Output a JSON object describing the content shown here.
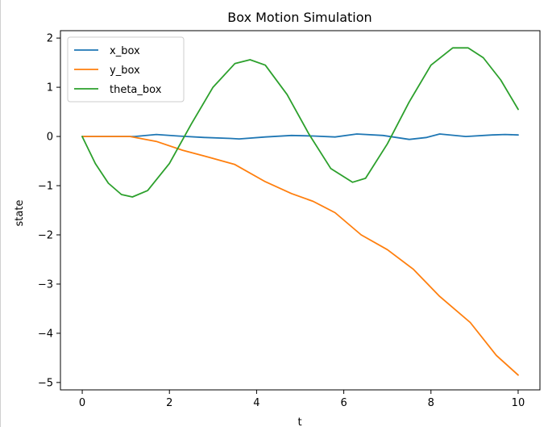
{
  "chart_data": {
    "type": "line",
    "title": "Box Motion Simulation",
    "xlabel": "t",
    "ylabel": "state",
    "xlim": [
      -0.5,
      10.5
    ],
    "ylim": [
      -5.15,
      2.15
    ],
    "xticks": [
      0,
      2,
      4,
      6,
      8,
      10
    ],
    "yticks": [
      -5,
      -4,
      -3,
      -2,
      -1,
      0,
      1,
      2
    ],
    "xtick_labels": [
      "0",
      "2",
      "4",
      "6",
      "8",
      "10"
    ],
    "ytick_labels": [
      "−5",
      "−4",
      "−3",
      "−2",
      "−1",
      "0",
      "1",
      "2"
    ],
    "grid": false,
    "legend_position": "top-left",
    "series": [
      {
        "name": "x_box",
        "color": "#1f77b4",
        "x": [
          0,
          0.6,
          1.2,
          1.7,
          2.2,
          2.8,
          3.4,
          3.6,
          4.2,
          4.8,
          5.3,
          5.8,
          6.3,
          6.9,
          7.5,
          7.9,
          8.2,
          8.8,
          9.4,
          9.7,
          10
        ],
        "y": [
          0,
          0,
          0,
          0.04,
          0.01,
          -0.02,
          -0.04,
          -0.05,
          -0.01,
          0.02,
          0.01,
          -0.01,
          0.05,
          0.02,
          -0.06,
          -0.02,
          0.05,
          0,
          0.03,
          0.04,
          0.03
        ]
      },
      {
        "name": "y_box",
        "color": "#ff7f0e",
        "x": [
          0,
          0.6,
          1.1,
          1.7,
          2.3,
          2.9,
          3.5,
          4.2,
          4.8,
          5.3,
          5.8,
          6.4,
          7.0,
          7.6,
          8.2,
          8.9,
          9.5,
          10
        ],
        "y": [
          0,
          0,
          0,
          -0.1,
          -0.28,
          -0.42,
          -0.57,
          -0.92,
          -1.16,
          -1.32,
          -1.55,
          -2.0,
          -2.3,
          -2.7,
          -3.25,
          -3.78,
          -4.45,
          -4.85
        ]
      },
      {
        "name": "theta_box",
        "color": "#2ca02c",
        "x": [
          0,
          0.3,
          0.6,
          0.9,
          1.15,
          1.5,
          2.0,
          2.5,
          3.0,
          3.5,
          3.85,
          4.2,
          4.7,
          5.2,
          5.7,
          6.2,
          6.5,
          7.0,
          7.5,
          8.0,
          8.5,
          8.85,
          9.2,
          9.6,
          10
        ],
        "y": [
          0,
          -0.55,
          -0.95,
          -1.18,
          -1.23,
          -1.1,
          -0.55,
          0.25,
          1.0,
          1.48,
          1.56,
          1.45,
          0.85,
          0.05,
          -0.65,
          -0.93,
          -0.85,
          -0.15,
          0.7,
          1.45,
          1.8,
          1.8,
          1.6,
          1.15,
          0.55
        ]
      }
    ]
  }
}
